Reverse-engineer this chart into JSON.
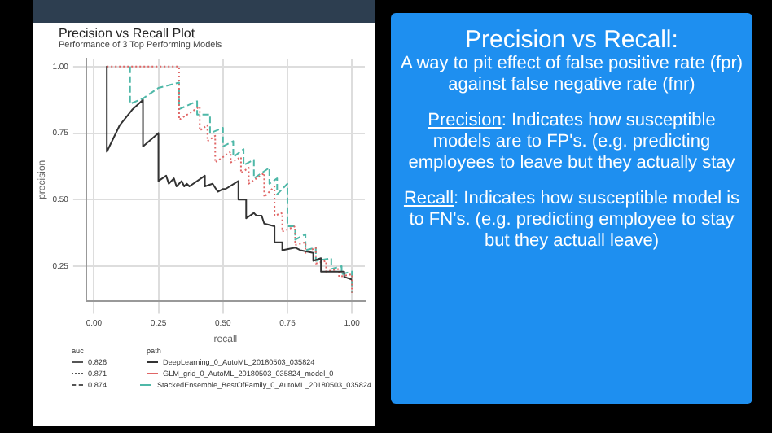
{
  "chart_data": [
    {
      "type": "line",
      "title": "Precision vs Recall Plot",
      "subtitle": "Performance of 3 Top Performing Models",
      "xlabel": "recall",
      "ylabel": "precision",
      "legend_title": "path",
      "legend": "bottom",
      "grid": true,
      "marker": "none",
      "xlim": [
        -0.03,
        1.05
      ],
      "ylim": [
        0.12,
        1.03
      ],
      "xticks": [
        {
          "value": 0,
          "label": "0.00"
        },
        {
          "value": 0.25,
          "label": "0.25"
        },
        {
          "value": 0.5,
          "label": "0.50"
        },
        {
          "value": 0.75,
          "label": "0.75"
        },
        {
          "value": 1,
          "label": "1.00"
        }
      ],
      "yticks": [
        {
          "value": 0.25,
          "label": "0.25"
        },
        {
          "value": 0.5,
          "label": "0.50"
        },
        {
          "value": 0.75,
          "label": "0.75"
        },
        {
          "value": 1,
          "label": "1.00"
        }
      ],
      "annotations": [
        "auc",
        "0.826",
        "0.871",
        "0.874"
      ],
      "series": [
        {
          "name": "DeepLearning_0_AutoML_20180503_035824",
          "color": "#333333",
          "line_style": "solid",
          "x": [
            0.05,
            0.05,
            0.1,
            0.15,
            0.19,
            0.19,
            0.25,
            0.25,
            0.28,
            0.29,
            0.31,
            0.32,
            0.34,
            0.35,
            0.36,
            0.37,
            0.43,
            0.43,
            0.46,
            0.48,
            0.5,
            0.51,
            0.56,
            0.56,
            0.59,
            0.59,
            0.62,
            0.63,
            0.65,
            0.66,
            0.7,
            0.7,
            0.73,
            0.73,
            0.78,
            0.8,
            0.85,
            0.85,
            0.88,
            0.88,
            0.92,
            0.97,
            0.97,
            1.0
          ],
          "values": [
            1.0,
            0.68,
            0.78,
            0.84,
            0.875,
            0.7,
            0.75,
            0.57,
            0.59,
            0.56,
            0.58,
            0.55,
            0.57,
            0.55,
            0.56,
            0.55,
            0.59,
            0.55,
            0.56,
            0.53,
            0.54,
            0.54,
            0.57,
            0.5,
            0.5,
            0.43,
            0.45,
            0.44,
            0.44,
            0.41,
            0.4,
            0.34,
            0.34,
            0.31,
            0.32,
            0.31,
            0.3,
            0.27,
            0.28,
            0.23,
            0.23,
            0.23,
            0.21,
            0.2
          ]
        },
        {
          "name": "GLM_grid_0_AutoML_20180503_035824_model_0",
          "color": "#e06666",
          "line_style": "dotted",
          "x": [
            0.05,
            0.33,
            0.33,
            0.41,
            0.41,
            0.44,
            0.44,
            0.47,
            0.47,
            0.53,
            0.53,
            0.57,
            0.57,
            0.6,
            0.6,
            0.66,
            0.66,
            0.7,
            0.7,
            0.73,
            0.73,
            0.78,
            0.78,
            0.82,
            0.82,
            0.86,
            0.86,
            0.9,
            0.9,
            0.95,
            0.95,
            1.0,
            1.0
          ],
          "values": [
            1.0,
            1.0,
            0.8,
            0.85,
            0.76,
            0.78,
            0.72,
            0.74,
            0.64,
            0.68,
            0.64,
            0.66,
            0.6,
            0.62,
            0.56,
            0.6,
            0.51,
            0.55,
            0.44,
            0.45,
            0.38,
            0.4,
            0.33,
            0.34,
            0.3,
            0.32,
            0.26,
            0.27,
            0.23,
            0.24,
            0.21,
            0.22,
            0.15
          ]
        },
        {
          "name": "StackedEnsemble_BestOfFamily_0_AutoML_20180503_035824",
          "color": "#4fb8a8",
          "line_style": "dashed",
          "x": [
            0.14,
            0.14,
            0.19,
            0.25,
            0.33,
            0.33,
            0.4,
            0.4,
            0.45,
            0.45,
            0.5,
            0.5,
            0.54,
            0.54,
            0.58,
            0.58,
            0.62,
            0.62,
            0.68,
            0.68,
            0.71,
            0.71,
            0.75,
            0.75,
            0.78,
            0.78,
            0.82,
            0.82,
            0.86,
            0.86,
            0.92,
            0.92,
            0.96,
            0.96,
            1.0,
            1.0
          ],
          "values": [
            1.0,
            0.86,
            0.88,
            0.92,
            0.94,
            0.84,
            0.87,
            0.82,
            0.82,
            0.75,
            0.77,
            0.7,
            0.72,
            0.66,
            0.69,
            0.63,
            0.65,
            0.58,
            0.62,
            0.56,
            0.58,
            0.52,
            0.56,
            0.4,
            0.4,
            0.35,
            0.37,
            0.31,
            0.32,
            0.27,
            0.28,
            0.24,
            0.25,
            0.22,
            0.23,
            0.15
          ]
        }
      ]
    },
    {
      "type": "other",
      "title": "Precision vs Recall:",
      "annotations": [
        "A way to pit effect of false positive rate (fpr) against false negative rate (fnr)",
        "Precision: Indicates how susceptible models are to FP's. (e.g. predicting employees to leave but they actually stay",
        "Recall: Indicates how susceptible model is to FN's. (e.g. predicting employee to stay but they actuall leave)"
      ]
    }
  ]
}
